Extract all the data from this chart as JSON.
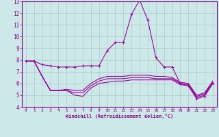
{
  "xlabel": "Windchill (Refroidissement éolien,°C)",
  "background_color": "#cce8e8",
  "line_color": "#990099",
  "grid_color": "#aacccc",
  "xlim": [
    -0.5,
    23.5
  ],
  "ylim": [
    4,
    13
  ],
  "yticks": [
    4,
    5,
    6,
    7,
    8,
    9,
    10,
    11,
    12,
    13
  ],
  "xticks": [
    0,
    1,
    2,
    3,
    4,
    5,
    6,
    7,
    8,
    9,
    10,
    11,
    12,
    13,
    14,
    15,
    16,
    17,
    18,
    19,
    20,
    21,
    22,
    23
  ],
  "series": [
    [
      7.9,
      7.9,
      6.6,
      5.4,
      5.4,
      5.4,
      5.0,
      4.9,
      5.6,
      6.0,
      6.1,
      6.2,
      6.2,
      6.3,
      6.3,
      6.3,
      6.3,
      6.3,
      6.3,
      5.9,
      5.8,
      4.8,
      5.0,
      6.0
    ],
    [
      7.9,
      7.9,
      6.6,
      5.4,
      5.4,
      5.4,
      5.2,
      5.2,
      5.8,
      6.2,
      6.4,
      6.4,
      6.4,
      6.5,
      6.5,
      6.5,
      6.4,
      6.4,
      6.4,
      6.0,
      5.9,
      4.9,
      5.1,
      6.1
    ],
    [
      7.9,
      7.9,
      6.6,
      5.4,
      5.4,
      5.5,
      5.4,
      5.4,
      6.0,
      6.4,
      6.6,
      6.6,
      6.6,
      6.7,
      6.7,
      6.7,
      6.6,
      6.6,
      6.5,
      6.1,
      6.0,
      5.0,
      5.2,
      6.2
    ],
    [
      7.9,
      7.9,
      7.6,
      7.5,
      7.4,
      7.4,
      7.4,
      7.5,
      7.5,
      7.5,
      8.8,
      9.5,
      9.5,
      11.9,
      13.1,
      11.4,
      8.2,
      7.4,
      7.4,
      6.0,
      5.8,
      4.7,
      4.9,
      6.0
    ]
  ]
}
